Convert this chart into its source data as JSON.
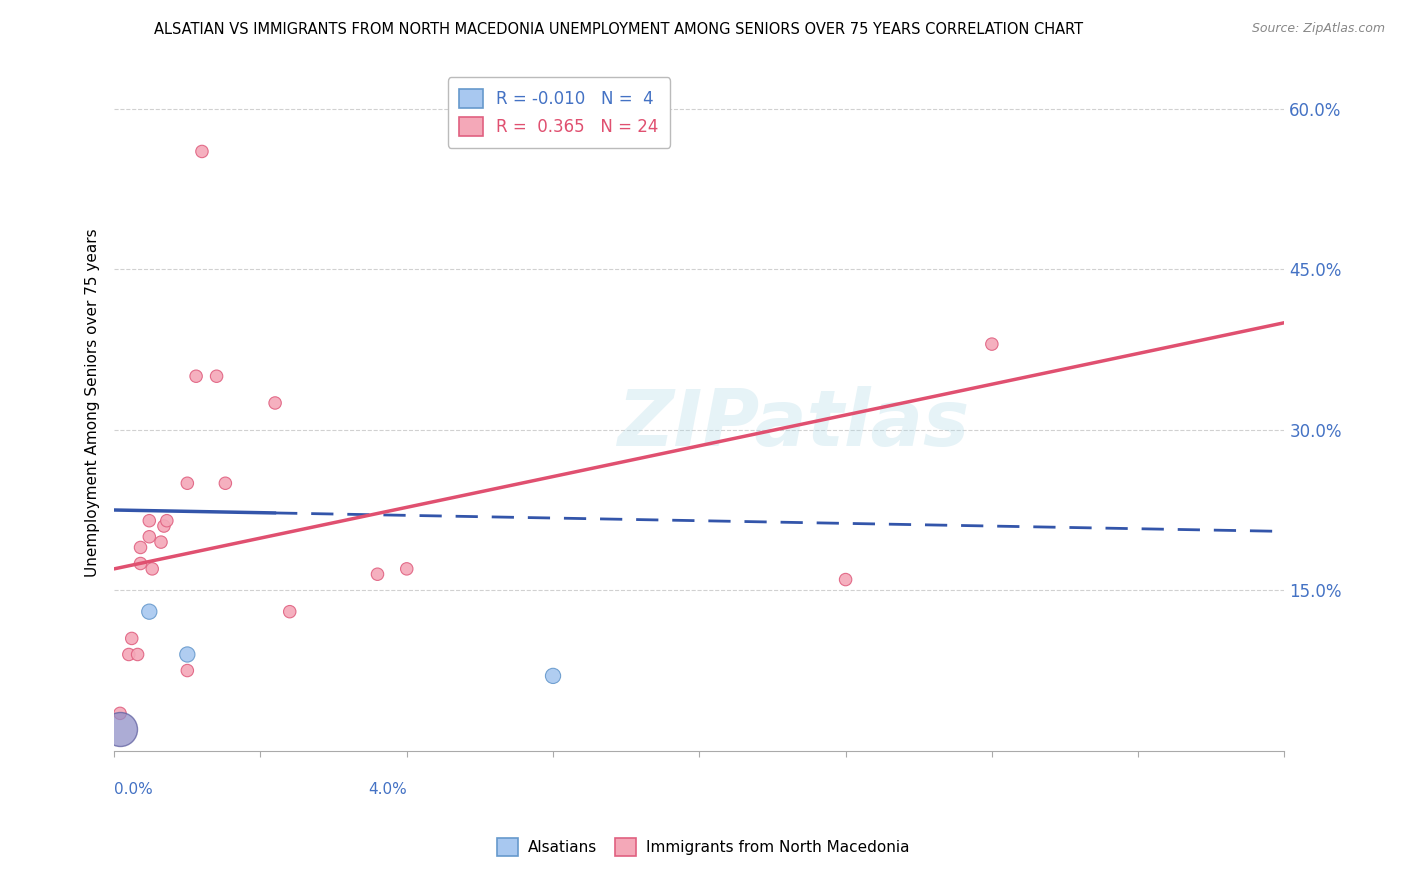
{
  "title": "ALSATIAN VS IMMIGRANTS FROM NORTH MACEDONIA UNEMPLOYMENT AMONG SENIORS OVER 75 YEARS CORRELATION CHART",
  "source": "Source: ZipAtlas.com",
  "ylabel": "Unemployment Among Seniors over 75 years",
  "xlim": [
    0.0,
    4.0
  ],
  "ylim": [
    0.0,
    65.0
  ],
  "ytick_vals": [
    15.0,
    30.0,
    45.0,
    60.0
  ],
  "background_color": "#ffffff",
  "watermark": "ZIPatlas",
  "legend_R_blue": "-0.010",
  "legend_N_blue": "4",
  "legend_R_pink": "0.365",
  "legend_N_pink": "24",
  "blue_fill": "#a8c8f0",
  "blue_edge": "#6699cc",
  "pink_fill": "#f4a8b8",
  "pink_edge": "#e06080",
  "blue_line_color": "#3355aa",
  "pink_line_color": "#e05070",
  "alsatian_points": [
    [
      0.02,
      2.0
    ],
    [
      0.12,
      13.0
    ],
    [
      0.25,
      9.0
    ],
    [
      1.5,
      7.0
    ]
  ],
  "alsatian_large": [
    0.02,
    2.0
  ],
  "alsatian_sizes": [
    600,
    120,
    120,
    120
  ],
  "macedonia_points": [
    [
      0.02,
      3.5
    ],
    [
      0.05,
      9.0
    ],
    [
      0.06,
      10.5
    ],
    [
      0.08,
      9.0
    ],
    [
      0.09,
      19.0
    ],
    [
      0.09,
      17.5
    ],
    [
      0.12,
      20.0
    ],
    [
      0.12,
      21.5
    ],
    [
      0.13,
      17.0
    ],
    [
      0.16,
      19.5
    ],
    [
      0.17,
      21.0
    ],
    [
      0.18,
      21.5
    ],
    [
      0.25,
      25.0
    ],
    [
      0.25,
      7.5
    ],
    [
      0.28,
      35.0
    ],
    [
      0.35,
      35.0
    ],
    [
      0.38,
      25.0
    ],
    [
      0.55,
      32.5
    ],
    [
      0.6,
      13.0
    ],
    [
      0.9,
      16.5
    ],
    [
      1.0,
      17.0
    ],
    [
      2.5,
      16.0
    ],
    [
      3.0,
      38.0
    ],
    [
      0.3,
      56.0
    ]
  ],
  "macedonia_sizes": [
    80,
    80,
    80,
    80,
    80,
    80,
    80,
    80,
    80,
    80,
    80,
    80,
    80,
    80,
    80,
    80,
    80,
    80,
    80,
    80,
    80,
    80,
    80,
    80
  ],
  "blue_trend_x0": 0.0,
  "blue_trend_y0": 22.5,
  "blue_trend_x1": 4.0,
  "blue_trend_y1": 20.5,
  "blue_solid_x1": 0.55,
  "pink_trend_x0": 0.0,
  "pink_trend_y0": 17.0,
  "pink_trend_x1": 4.0,
  "pink_trend_y1": 40.0
}
